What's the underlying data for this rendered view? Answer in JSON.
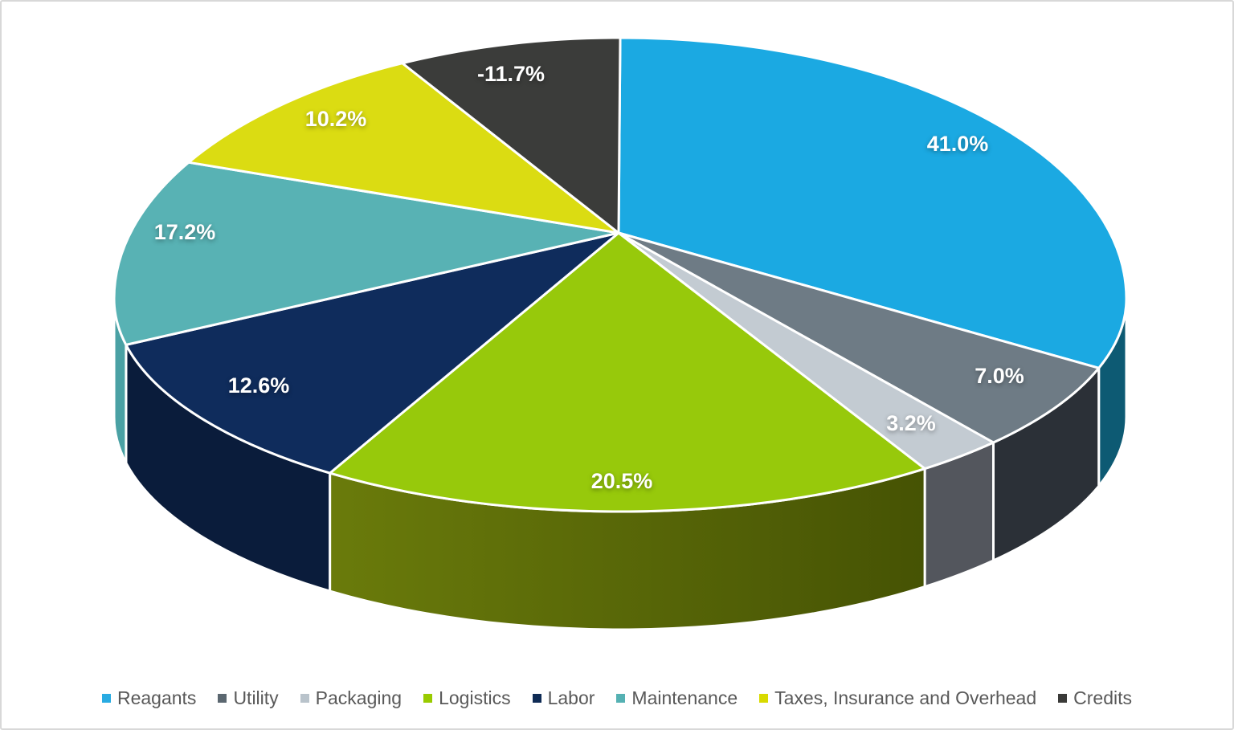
{
  "chart_data": {
    "type": "pie",
    "style": "3d",
    "title": "",
    "legend_position": "bottom",
    "label_format": "percent",
    "label_color": "#FFFFFF",
    "legend_text_color": "#595959",
    "background": "#FFFFFF",
    "border_color": "#D8D8D8",
    "slices": [
      {
        "label": "Reagants",
        "value": 41.0,
        "display": "41.0%",
        "color": "#29ABE2",
        "top": "#1BA9E2",
        "side": "#0D5A73"
      },
      {
        "label": "Utility",
        "value": 7.0,
        "display": "7.0%",
        "color": "#5B6770",
        "top": "#6E7B85",
        "side": "#2B3037"
      },
      {
        "label": "Packaging",
        "value": 3.2,
        "display": "3.2%",
        "color": "#B9C3CB",
        "top": "#C3CBD2",
        "side": "#53565D"
      },
      {
        "label": "Logistics",
        "value": 20.5,
        "display": "20.5%",
        "color": "#99CB00",
        "top": "#97C90B",
        "side": "#566408",
        "side_gradient": [
          "#6A7B0B",
          "#465304"
        ]
      },
      {
        "label": "Labor",
        "value": 12.6,
        "display": "12.6%",
        "color": "#0F2B55",
        "top": "#0F2C5C",
        "side": "#0A1C3B"
      },
      {
        "label": "Maintenance",
        "value": 17.2,
        "display": "17.2%",
        "color": "#55B1B3",
        "top": "#58B2B4",
        "side": "#4AA1A4"
      },
      {
        "label": "Taxes, Insurance and Overhead",
        "value": 10.2,
        "display": "10.2%",
        "color": "#D8DA00",
        "top": "#DBDC12",
        "side": null
      },
      {
        "label": "Credits",
        "value": -11.7,
        "display": "-11.7%",
        "color": "#3A3A38",
        "top": "#3B3C3A",
        "side": null
      }
    ]
  }
}
